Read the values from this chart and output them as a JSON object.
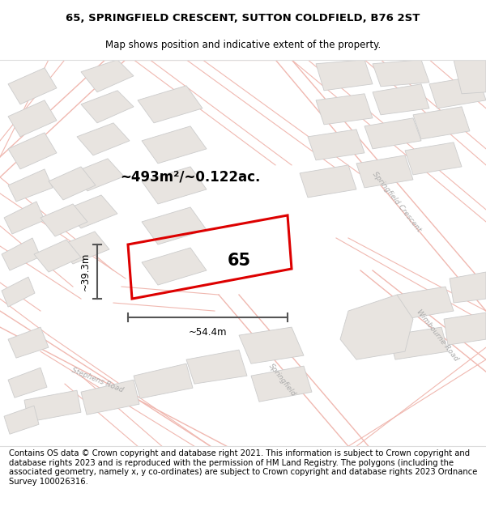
{
  "title_line1": "65, SPRINGFIELD CRESCENT, SUTTON COLDFIELD, B76 2ST",
  "title_line2": "Map shows position and indicative extent of the property.",
  "footer_text": "Contains OS data © Crown copyright and database right 2021. This information is subject to Crown copyright and database rights 2023 and is reproduced with the permission of HM Land Registry. The polygons (including the associated geometry, namely x, y co-ordinates) are subject to Crown copyright and database rights 2023 Ordnance Survey 100026316.",
  "area_label": "~493m²/~0.122ac.",
  "width_label": "~54.4m",
  "height_label": "~39.3m",
  "plot_number": "65",
  "map_bg": "#ffffff",
  "road_stroke": "#f0b8b0",
  "building_fill": "#e8e4e0",
  "building_stroke": "#cccccc",
  "highlight_stroke": "#dd0000",
  "dim_color": "#555555",
  "title_fontsize": 9.5,
  "subtitle_fontsize": 8.5,
  "footer_fontsize": 7.2,
  "road_label_color": "#aaaaaa",
  "road_label_size": 6.5
}
